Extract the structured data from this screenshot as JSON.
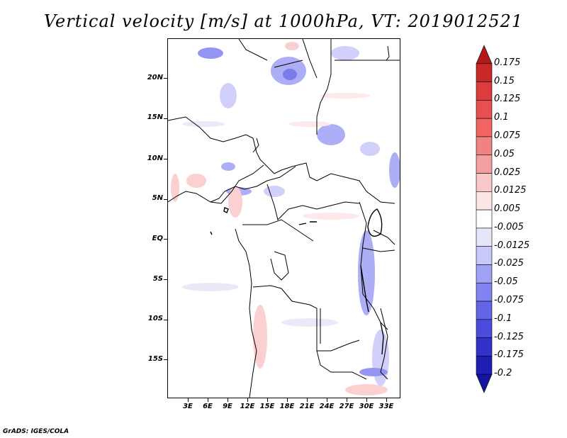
{
  "title": "Vertical velocity [m/s] at 1000hPa, VT: 2019012521",
  "credit": "GrADS: IGES/COLA",
  "map": {
    "lat_labels": [
      "20N",
      "15N",
      "10N",
      "5N",
      "EQ",
      "5S",
      "10S",
      "15S"
    ],
    "lon_labels": [
      "3E",
      "6E",
      "9E",
      "12E",
      "15E",
      "18E",
      "21E",
      "24E",
      "27E",
      "30E",
      "33E"
    ],
    "lon_range": [
      0,
      35
    ],
    "lat_range": [
      -20,
      25
    ]
  },
  "colorbar": {
    "labels": [
      "0.175",
      "0.15",
      "0.125",
      "0.1",
      "0.075",
      "0.05",
      "0.025",
      "0.0125",
      "0.005",
      "-0.005",
      "-0.0125",
      "-0.025",
      "-0.05",
      "-0.075",
      "-0.1",
      "-0.125",
      "-0.175",
      "-0.2"
    ],
    "colors": [
      "#b41919",
      "#c82828",
      "#dc3c3c",
      "#e65050",
      "#f06464",
      "#f08282",
      "#f5a0a0",
      "#fac8c8",
      "#fde6e6",
      "#ffffff",
      "#e6e6fa",
      "#c8c8fa",
      "#a0a0f5",
      "#8282f0",
      "#6464e6",
      "#4b4bdc",
      "#3232c8",
      "#1e1eb4",
      "#1414a0"
    ]
  }
}
